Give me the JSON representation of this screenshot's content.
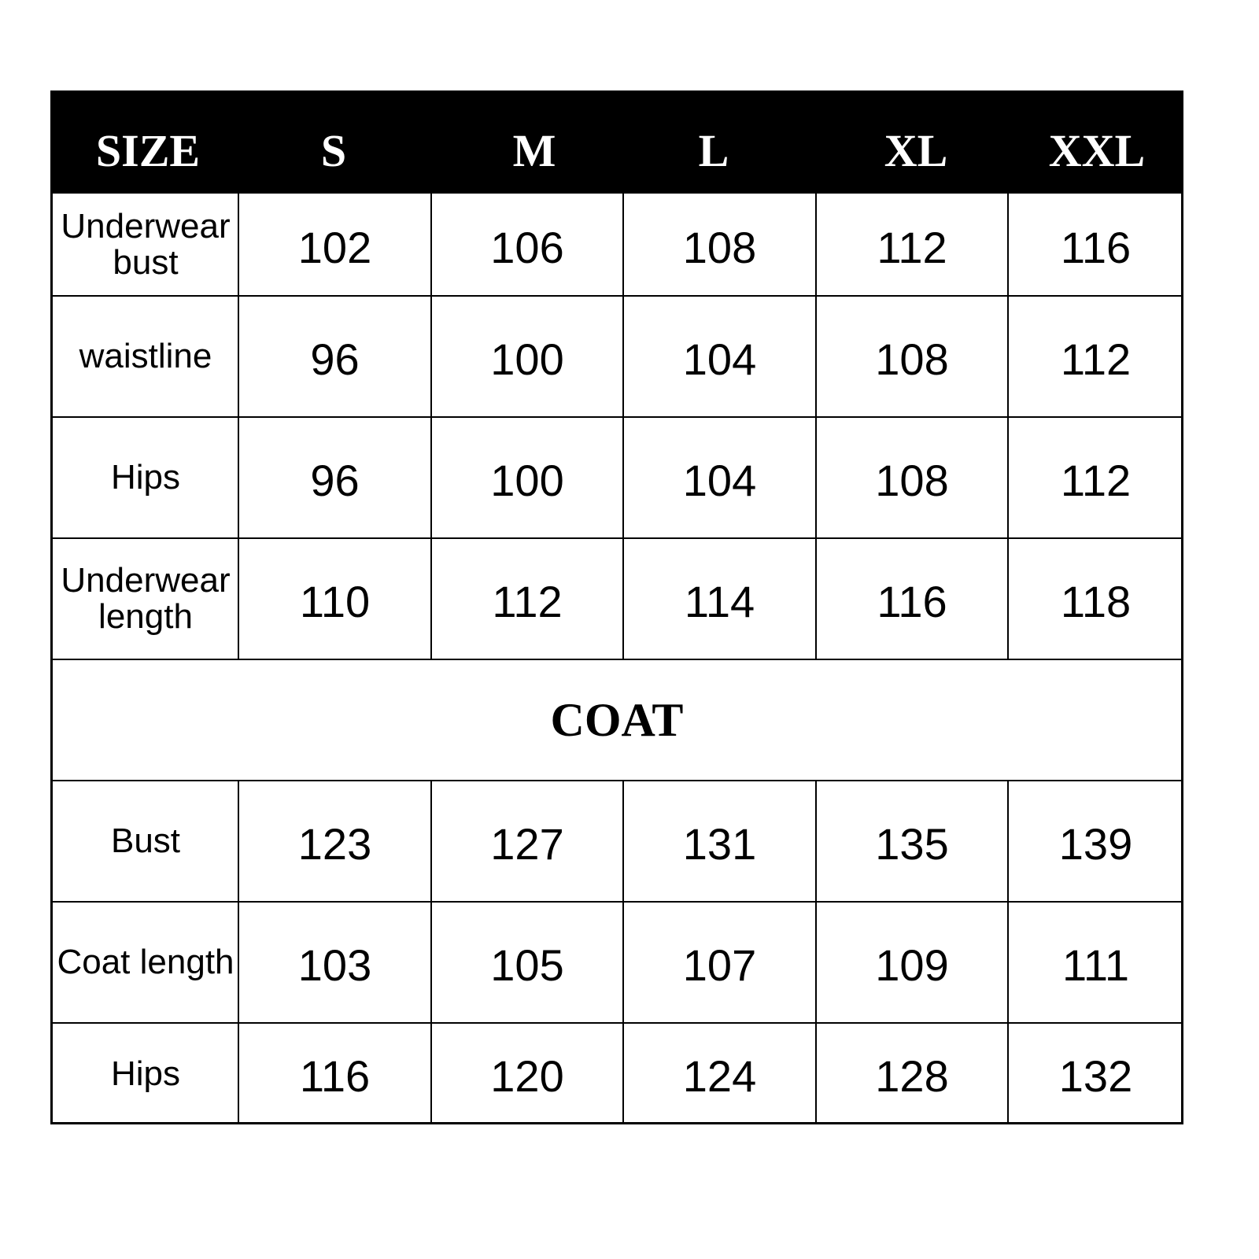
{
  "header": [
    "SIZE",
    "S",
    "M",
    "L",
    "XL",
    "XXL"
  ],
  "underwear_rows": [
    {
      "label": "Underwear bust",
      "values": [
        "102",
        "106",
        "108",
        "112",
        "116"
      ]
    },
    {
      "label": "waistline",
      "values": [
        "96",
        "100",
        "104",
        "108",
        "112"
      ]
    },
    {
      "label": "Hips",
      "values": [
        "96",
        "100",
        "104",
        "108",
        "112"
      ]
    },
    {
      "label": "Underwear length",
      "values": [
        "110",
        "112",
        "114",
        "116",
        "118"
      ]
    }
  ],
  "section_title": "COAT",
  "coat_rows": [
    {
      "label": "Bust",
      "values": [
        "123",
        "127",
        "131",
        "135",
        "139"
      ]
    },
    {
      "label": "Coat length",
      "values": [
        "103",
        "105",
        "107",
        "109",
        "111"
      ]
    },
    {
      "label": "Hips",
      "values": [
        "116",
        "120",
        "124",
        "128",
        "132"
      ]
    }
  ]
}
